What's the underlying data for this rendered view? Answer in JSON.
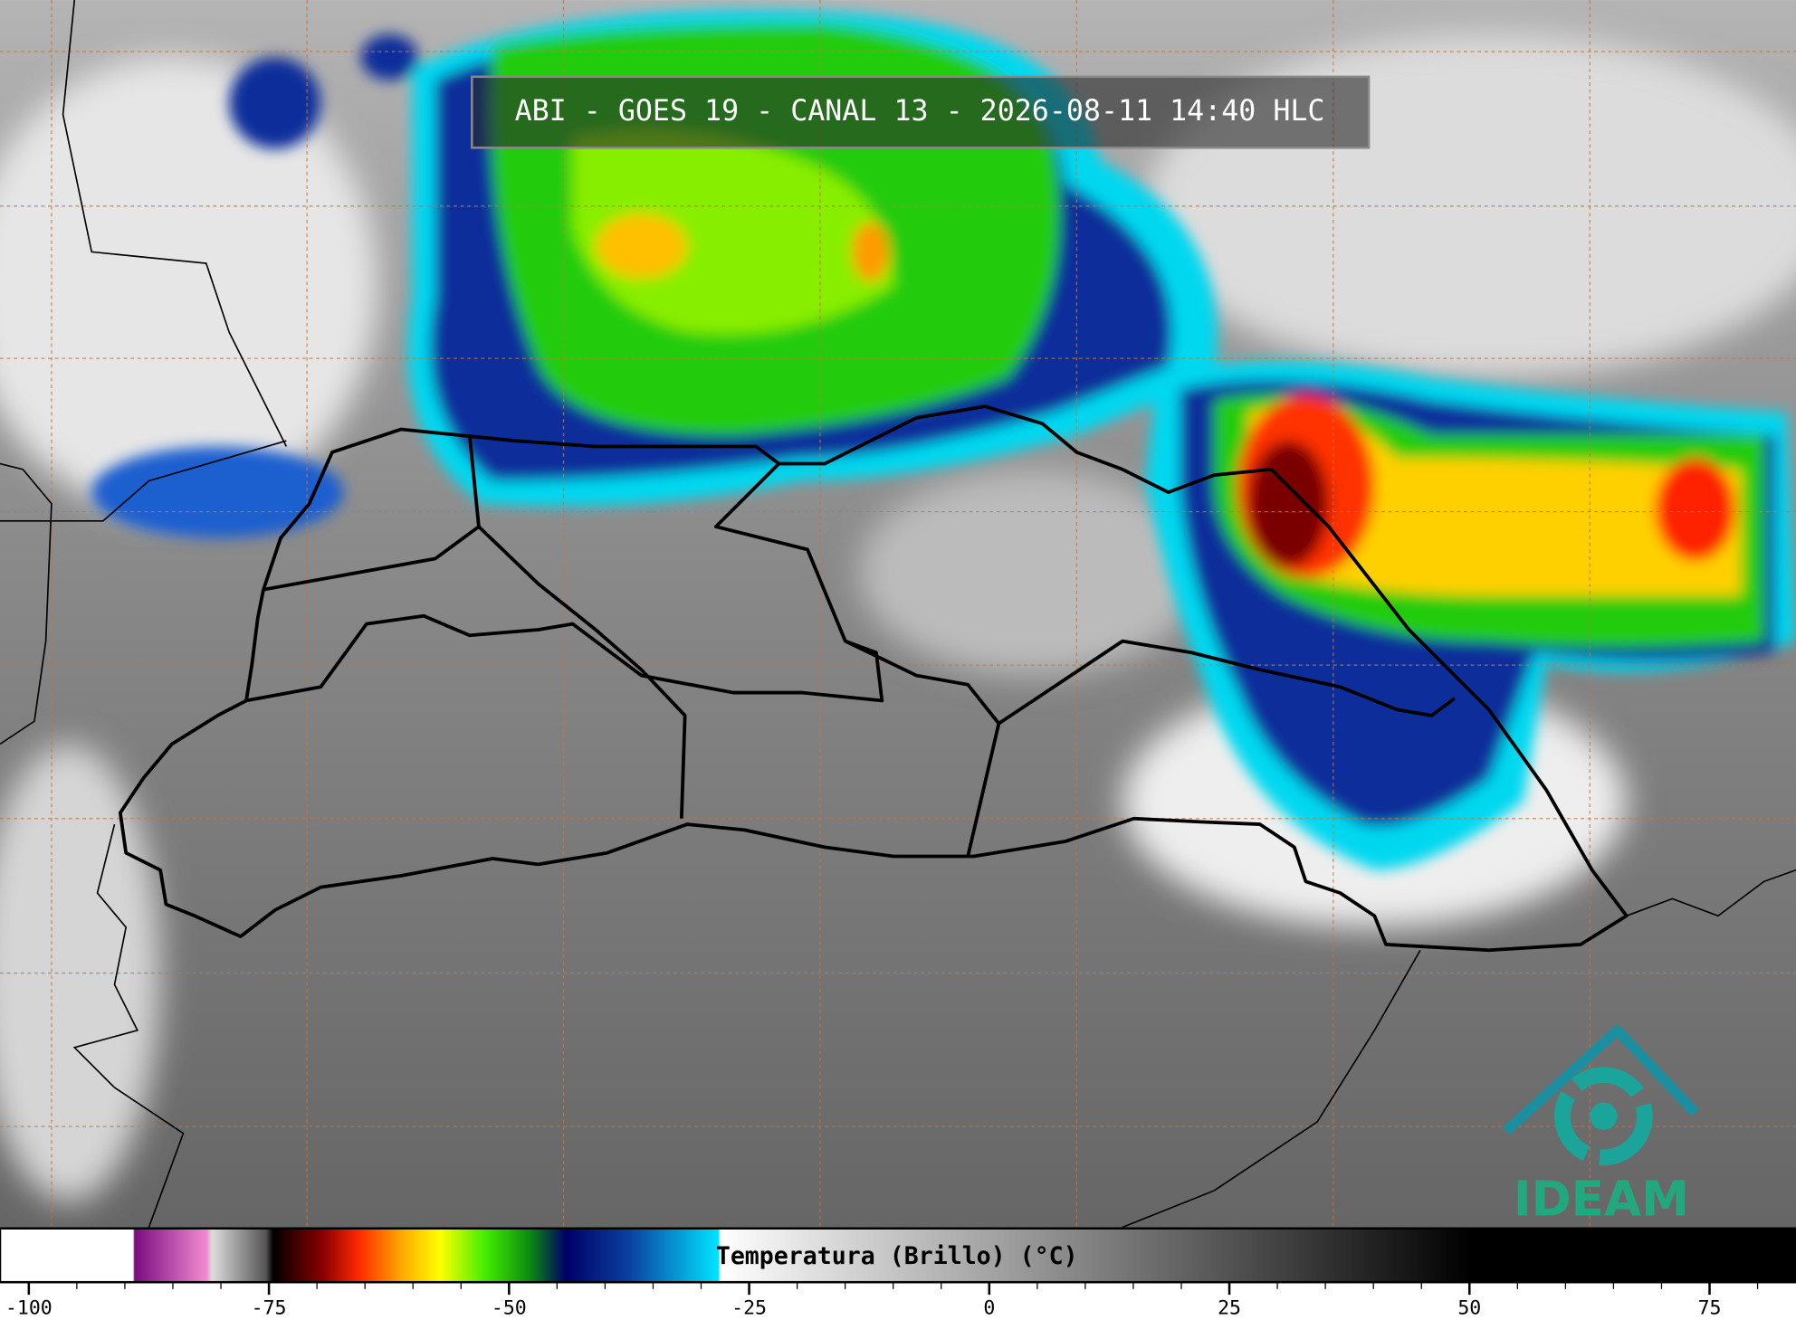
{
  "title": "ABI - GOES 19 - CANAL 13 - 2026-08-11 14:40 HLC",
  "logo": "IDEAM",
  "colorbar": {
    "label": "Temperatura (Brillo) (°C)",
    "lim": [
      -103,
      84
    ],
    "ticks": [
      -100,
      -75,
      -50,
      -25,
      0,
      25,
      50,
      75
    ]
  }
}
